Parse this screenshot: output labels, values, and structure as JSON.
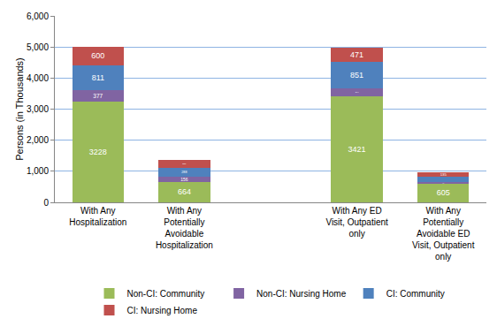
{
  "chart_data": {
    "type": "bar",
    "stacked": true,
    "data_labels": true,
    "grid": true,
    "legend": "bottom",
    "y_label": "Persons (in Thousands)",
    "categories": [
      "With Any Hospitalization",
      "With Any Potentially Avoidable Hospitalization",
      null,
      "With Any ED Visit, Outpatient only",
      "With Any Potentially Avoidable ED Visit, Outpatient only"
    ],
    "series": [
      {
        "name": "Non-CI: Community",
        "color": "#9BBB59",
        "values": [
          3228,
          664,
          null,
          3421,
          605
        ]
      },
      {
        "name": "Non-CI: Nursing Home",
        "color": "#8064A2",
        "values": [
          377,
          156,
          null,
          244,
          44
        ]
      },
      {
        "name": "CI: Community",
        "color": "#4F81BD",
        "values": [
          811,
          288,
          null,
          851,
          174
        ]
      },
      {
        "name": "CI: Nursing Home",
        "color": "#C0504D",
        "values": [
          600,
          251,
          null,
          471,
          135
        ]
      }
    ],
    "ylim": [
      0,
      6000
    ],
    "yticks": [
      0,
      {
        "value": 1000,
        "label": "1,000"
      },
      {
        "value": 2000,
        "label": "2,000"
      },
      {
        "value": 3000,
        "label": "3,000"
      },
      {
        "value": 4000,
        "label": "4,000"
      },
      {
        "value": 5000,
        "label": "5,000"
      },
      {
        "value": 6000,
        "label": "6,000"
      }
    ]
  }
}
